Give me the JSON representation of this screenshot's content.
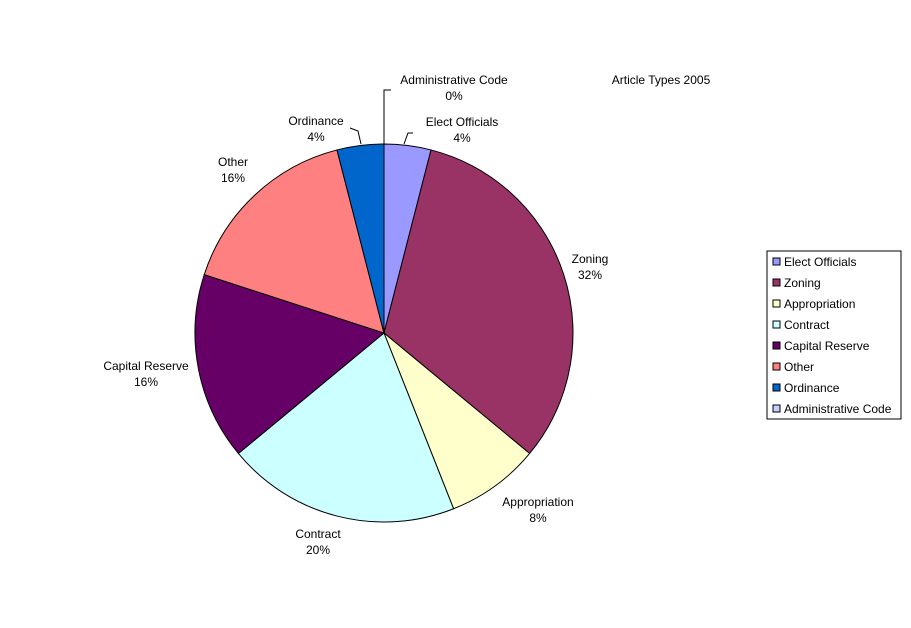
{
  "chart_data": {
    "type": "pie",
    "title": "Article Types 2005",
    "categories": [
      "Elect Officials",
      "Zoning",
      "Appropriation",
      "Contract",
      "Capital Reserve",
      "Other",
      "Ordinance",
      "Administrative Code"
    ],
    "values": [
      4,
      32,
      8,
      20,
      16,
      16,
      4,
      0
    ],
    "data_labels": [
      "4%",
      "32%",
      "8%",
      "20%",
      "16%",
      "16%",
      "4%",
      "0%"
    ],
    "colors": [
      "#9999ff",
      "#993366",
      "#ffffcc",
      "#ccffff",
      "#660066",
      "#ff8080",
      "#0066cc",
      "#ccccff"
    ],
    "legend_position": "right",
    "start_angle_deg": 0,
    "direction": "clockwise"
  }
}
